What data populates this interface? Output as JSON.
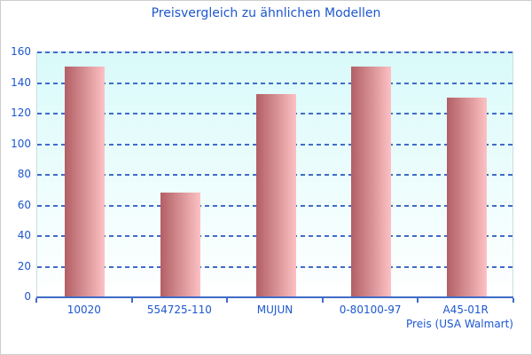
{
  "chart_data": {
    "type": "bar",
    "title": "Preisvergleich zu ähnlichen Modellen",
    "categories": [
      "10020",
      "554725-110",
      "MUJUN",
      "0-80100-97",
      "A45-01R"
    ],
    "values": [
      150,
      68,
      132,
      150,
      130
    ],
    "xlabel": "Preis (USA Walmart)",
    "ylabel": "",
    "ylim": [
      0,
      160
    ],
    "ytick_step": 20,
    "yticks": [
      0,
      20,
      40,
      60,
      80,
      100,
      120,
      140,
      160
    ],
    "grid": "horizontal-dashed",
    "legend": "none",
    "colors": {
      "text_blue": "#1c57cf",
      "grid_blue": "#3f6cc8",
      "bar_gradient_left": "#b25f64",
      "bar_gradient_right": "#fcc1c4",
      "plot_bg_top": "#d9fafa",
      "plot_bg_bottom": "#ffffff",
      "plot_border": "#c9dede",
      "frame_border": "#cdcdcd"
    }
  }
}
